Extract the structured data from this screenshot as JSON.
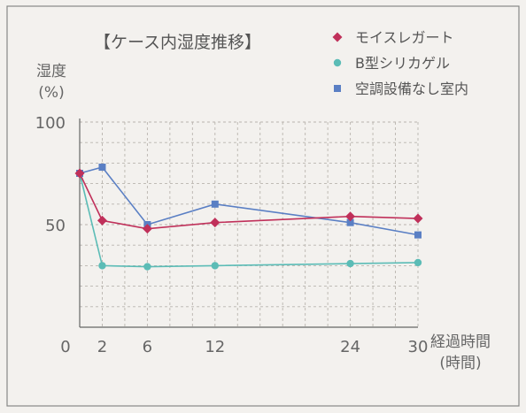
{
  "chart_data": {
    "type": "line",
    "title": "【ケース内湿度推移】",
    "ylabel": "湿度",
    "ylabel_unit": "(%)",
    "xlabel": "経過時間",
    "xlabel_unit": "(時間)",
    "xlim": [
      0,
      30
    ],
    "ylim": [
      0,
      100
    ],
    "x_ticks": [
      0,
      2,
      6,
      12,
      24,
      30
    ],
    "y_ticks": [
      50,
      100
    ],
    "grid": true,
    "legend_position": "top-right",
    "series": [
      {
        "name": "モイスレガート",
        "color": "#c0305a",
        "marker": "diamond",
        "x": [
          0,
          2,
          6,
          12,
          24,
          30
        ],
        "y": [
          75,
          52,
          48,
          51,
          54,
          53
        ]
      },
      {
        "name": "B型シリカゲル",
        "color": "#5bbcb6",
        "marker": "circle",
        "x": [
          0,
          2,
          6,
          12,
          24,
          30
        ],
        "y": [
          75,
          30,
          29.5,
          30,
          31,
          31.5
        ]
      },
      {
        "name": "空調設備なし室内",
        "color": "#5a7fc4",
        "marker": "square",
        "x": [
          0,
          2,
          6,
          12,
          24,
          30
        ],
        "y": [
          75,
          78,
          50,
          60,
          51,
          45
        ]
      }
    ]
  }
}
